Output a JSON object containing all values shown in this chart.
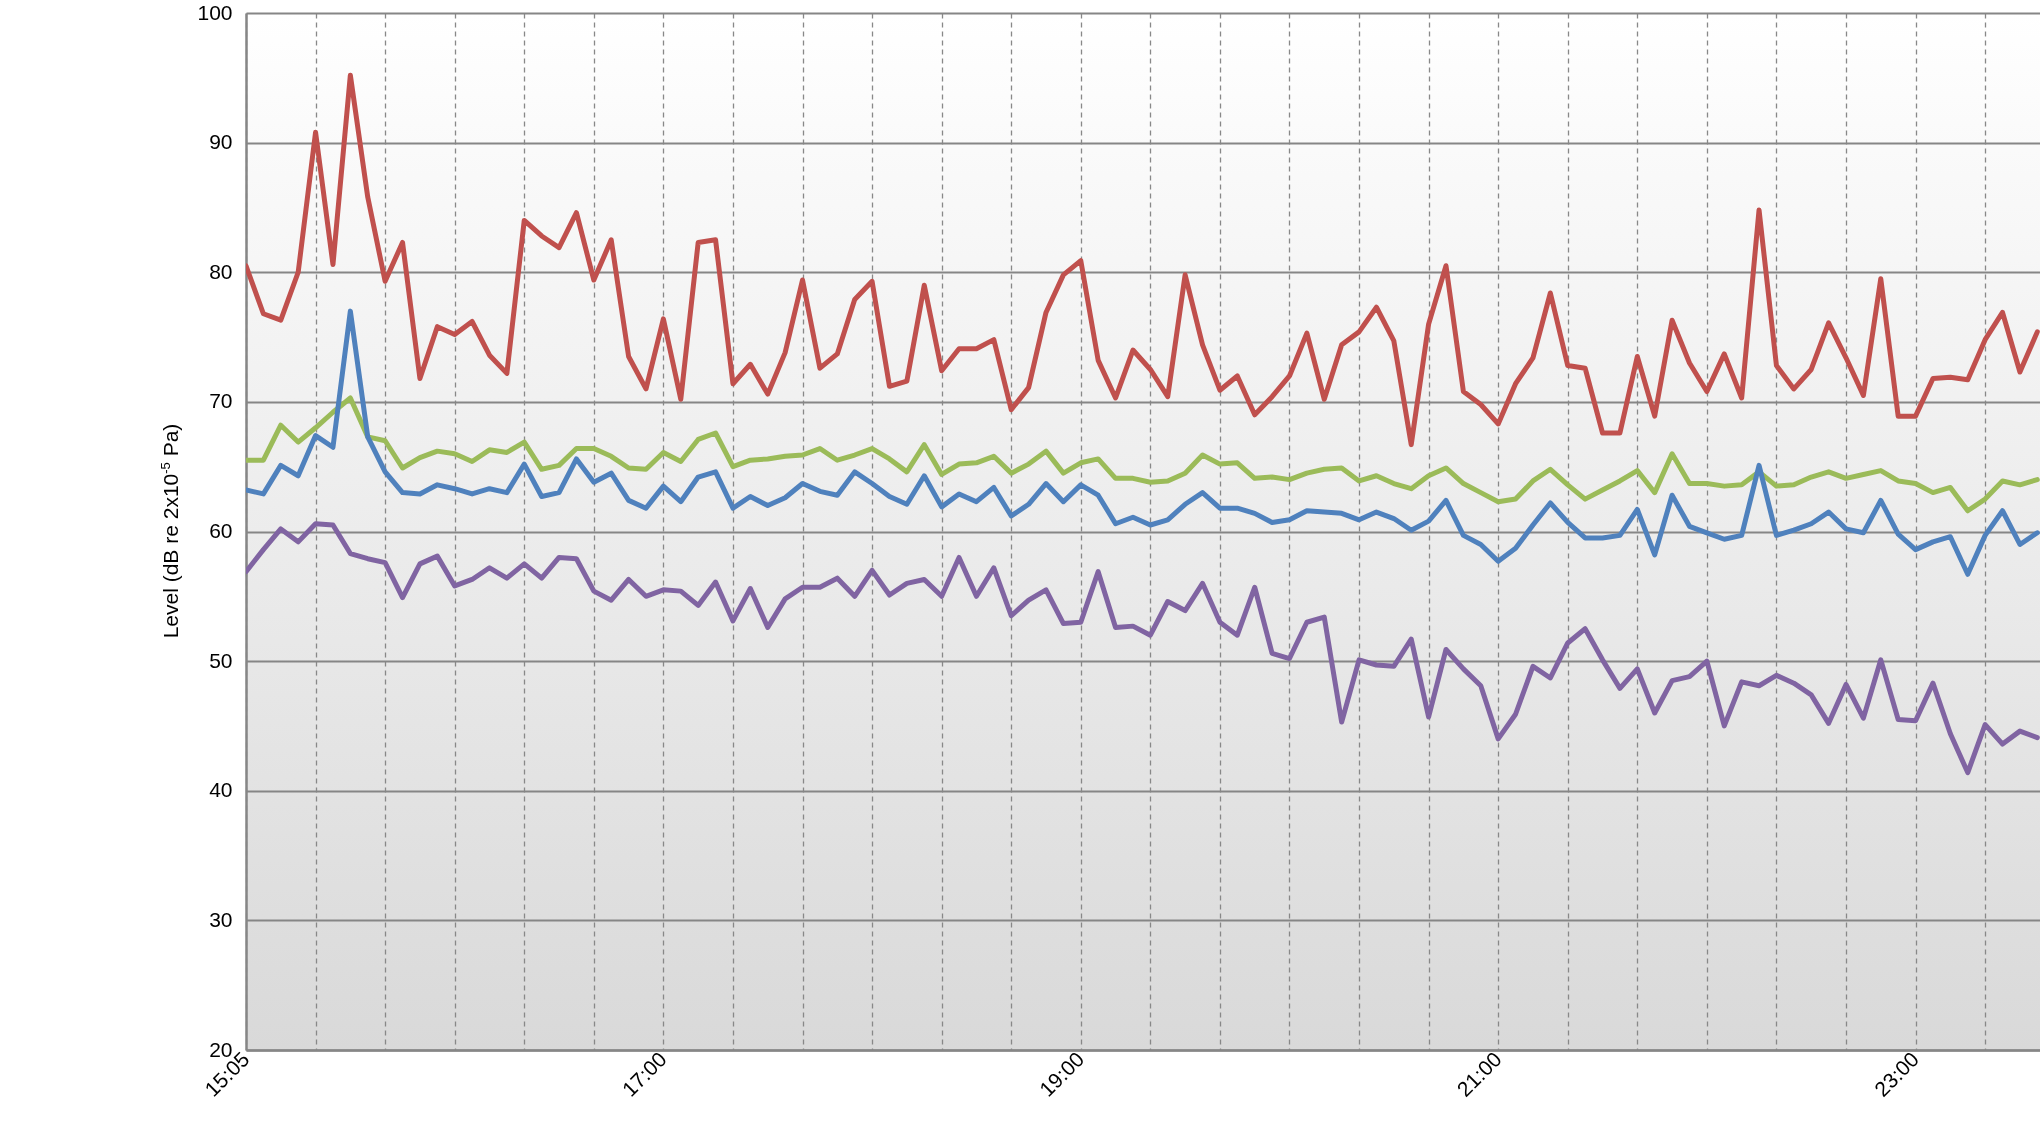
{
  "chart_data": {
    "type": "line",
    "ylabel": "Level (dB re 2x10$^{-5}$ Pa)",
    "categories": [
      "15:05",
      null,
      null,
      null,
      null,
      null,
      null,
      null,
      null,
      null,
      null,
      null,
      null,
      null,
      null,
      null,
      null,
      null,
      null,
      null,
      null,
      null,
      null,
      null,
      "17:00",
      null,
      null,
      null,
      null,
      null,
      null,
      null,
      null,
      null,
      null,
      null,
      null,
      null,
      null,
      null,
      null,
      null,
      null,
      null,
      null,
      null,
      null,
      null,
      "19:00",
      null,
      null,
      null,
      null,
      null,
      null,
      null,
      null,
      null,
      null,
      null,
      null,
      null,
      null,
      null,
      null,
      null,
      null,
      null,
      null,
      null,
      null,
      null,
      "21:00",
      null,
      null,
      null,
      null,
      null,
      null,
      null,
      null,
      null,
      null,
      null,
      null,
      null,
      null,
      null,
      null,
      null,
      null,
      null,
      null,
      null,
      null,
      null,
      "23:00",
      null,
      null,
      null,
      null,
      null,
      null,
      null
    ],
    "ylim": [
      20,
      100
    ],
    "yticks": [
      20,
      30,
      40,
      50,
      60,
      70,
      80,
      90,
      100
    ],
    "grid": true,
    "series": [
      {
        "color": "#c0504d",
        "values": [
          80.5,
          76.8,
          76.3,
          80,
          90.8,
          80.6,
          95.2,
          85.8,
          79.3,
          82.3,
          71.8,
          75.8,
          75.2,
          76.2,
          73.6,
          72.2,
          84,
          82.8,
          81.9,
          84.6,
          79.4,
          82.5,
          73.5,
          71,
          76.4,
          70.2,
          82.3,
          82.5,
          71.4,
          72.9,
          70.6,
          73.8,
          79.4,
          72.6,
          73.7,
          77.9,
          79.3,
          71.2,
          71.6,
          79,
          72.4,
          74.1,
          74.1,
          74.8,
          69.4,
          71.1,
          76.9,
          79.8,
          80.9,
          73.2,
          70.3,
          74,
          72.5,
          70.4,
          79.8,
          74.4,
          70.9,
          72,
          69,
          70.4,
          72,
          75.3,
          70.2,
          74.4,
          75.4,
          77.3,
          74.7,
          66.7,
          76,
          80.5,
          70.8,
          69.8,
          68.3,
          71.4,
          73.4,
          78.4,
          72.8,
          72.6,
          67.6,
          67.6,
          73.5,
          68.9,
          76.3,
          73,
          70.8,
          73.7,
          70.3,
          84.8,
          72.8,
          71,
          72.5,
          76.1,
          73.4,
          70.5,
          79.5,
          68.9,
          68.9,
          71.8,
          71.9,
          71.7,
          74.8,
          76.9,
          72.3,
          75.4
        ]
      },
      {
        "color": "#9bbb59",
        "values": [
          65.5,
          65.5,
          68.2,
          66.9,
          68,
          69.2,
          70.3,
          67.3,
          67,
          64.9,
          65.7,
          66.2,
          66,
          65.4,
          66.3,
          66.1,
          66.9,
          64.8,
          65.1,
          66.4,
          66.4,
          65.8,
          64.9,
          64.8,
          66.1,
          65.4,
          67.1,
          67.6,
          65,
          65.5,
          65.6,
          65.8,
          65.9,
          66.4,
          65.5,
          65.9,
          66.4,
          65.6,
          64.6,
          66.7,
          64.4,
          65.2,
          65.3,
          65.8,
          64.5,
          65.2,
          66.2,
          64.5,
          65.3,
          65.6,
          64.1,
          64.1,
          63.8,
          63.9,
          64.5,
          65.9,
          65.2,
          65.3,
          64.1,
          64.2,
          64,
          64.5,
          64.8,
          64.9,
          63.9,
          64.3,
          63.7,
          63.3,
          64.3,
          64.9,
          63.7,
          63,
          62.3,
          62.5,
          63.9,
          64.8,
          63.6,
          62.5,
          63.2,
          63.9,
          64.7,
          63,
          66,
          63.7,
          63.7,
          63.5,
          63.6,
          64.6,
          63.5,
          63.6,
          64.2,
          64.6,
          64.1,
          64.4,
          64.7,
          63.9,
          63.7,
          63,
          63.4,
          61.6,
          62.5,
          63.9,
          63.6,
          64
        ]
      },
      {
        "color": "#4f81bd",
        "values": [
          63.2,
          62.9,
          65.1,
          64.3,
          67.4,
          66.5,
          77,
          67.3,
          64.6,
          63,
          62.9,
          63.6,
          63.3,
          62.9,
          63.3,
          63,
          65.2,
          62.7,
          63,
          65.6,
          63.8,
          64.5,
          62.4,
          61.8,
          63.5,
          62.3,
          64.2,
          64.6,
          61.8,
          62.7,
          62,
          62.6,
          63.7,
          63.1,
          62.8,
          64.6,
          63.7,
          62.7,
          62.1,
          64.3,
          61.9,
          62.9,
          62.3,
          63.4,
          61.2,
          62.1,
          63.7,
          62.3,
          63.6,
          62.8,
          60.6,
          61.1,
          60.5,
          60.9,
          62.1,
          63,
          61.8,
          61.8,
          61.4,
          60.7,
          60.9,
          61.6,
          61.5,
          61.4,
          60.9,
          61.5,
          61,
          60.1,
          60.8,
          62.4,
          59.7,
          59,
          57.7,
          58.7,
          60.5,
          62.2,
          60.7,
          59.5,
          59.5,
          59.7,
          61.7,
          58.2,
          62.8,
          60.4,
          59.9,
          59.4,
          59.7,
          65.1,
          59.7,
          60.1,
          60.6,
          61.5,
          60.2,
          59.9,
          62.4,
          59.8,
          58.6,
          59.2,
          59.6,
          56.7,
          59.7,
          61.6,
          59,
          59.9
        ]
      },
      {
        "color": "#8064a2",
        "values": [
          56.9,
          58.6,
          60.2,
          59.2,
          60.6,
          60.5,
          58.3,
          57.9,
          57.6,
          54.9,
          57.5,
          58.1,
          55.8,
          56.3,
          57.2,
          56.4,
          57.5,
          56.4,
          58,
          57.9,
          55.4,
          54.7,
          56.3,
          55,
          55.5,
          55.4,
          54.3,
          56.1,
          53.1,
          55.6,
          52.6,
          54.8,
          55.7,
          55.7,
          56.4,
          55,
          57,
          55.1,
          56,
          56.3,
          55,
          58,
          55,
          57.2,
          53.5,
          54.7,
          55.5,
          52.9,
          53,
          56.9,
          52.6,
          52.7,
          52,
          54.6,
          53.9,
          56,
          53,
          52,
          55.7,
          50.6,
          50.2,
          53,
          53.4,
          45.3,
          50.1,
          49.7,
          49.6,
          51.7,
          45.7,
          50.9,
          49.4,
          48.1,
          44,
          45.9,
          49.6,
          48.7,
          51.4,
          52.5,
          50.1,
          47.9,
          49.4,
          46,
          48.5,
          48.8,
          50,
          45,
          48.4,
          48.1,
          48.9,
          48.3,
          47.4,
          45.2,
          48.2,
          45.6,
          50.1,
          45.5,
          45.4,
          48.3,
          44.4,
          41.4,
          45.1,
          43.6,
          44.6,
          44.1
        ]
      }
    ]
  }
}
